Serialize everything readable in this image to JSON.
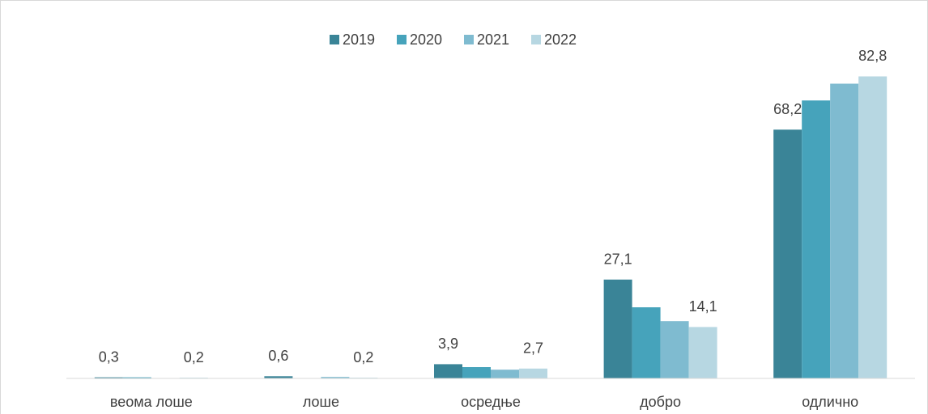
{
  "chart_data": {
    "type": "bar",
    "categories": [
      "веома лоше",
      "лоше",
      "осредње",
      "добро",
      "одлично"
    ],
    "series": [
      {
        "name": "2019",
        "color": "#3a8497",
        "values": [
          0.3,
          0.6,
          3.9,
          27.1,
          68.2
        ],
        "value_labels": [
          "0,3",
          "0,6",
          "3,9",
          "27,1",
          "68,2"
        ]
      },
      {
        "name": "2020",
        "color": "#46a3bb",
        "values": [
          0.3,
          0.1,
          3.1,
          19.5,
          76.2
        ]
      },
      {
        "name": "2021",
        "color": "#7fbbd0",
        "values": [
          0.1,
          0.4,
          2.4,
          15.7,
          80.8
        ]
      },
      {
        "name": "2022",
        "color": "#b7d7e2",
        "values": [
          0.2,
          0.2,
          2.7,
          14.1,
          82.8
        ],
        "value_labels": [
          "0,2",
          "0,2",
          "2,7",
          "14,1",
          "82,8"
        ]
      }
    ],
    "ylim": [
      0,
      90
    ],
    "legend": "top"
  }
}
